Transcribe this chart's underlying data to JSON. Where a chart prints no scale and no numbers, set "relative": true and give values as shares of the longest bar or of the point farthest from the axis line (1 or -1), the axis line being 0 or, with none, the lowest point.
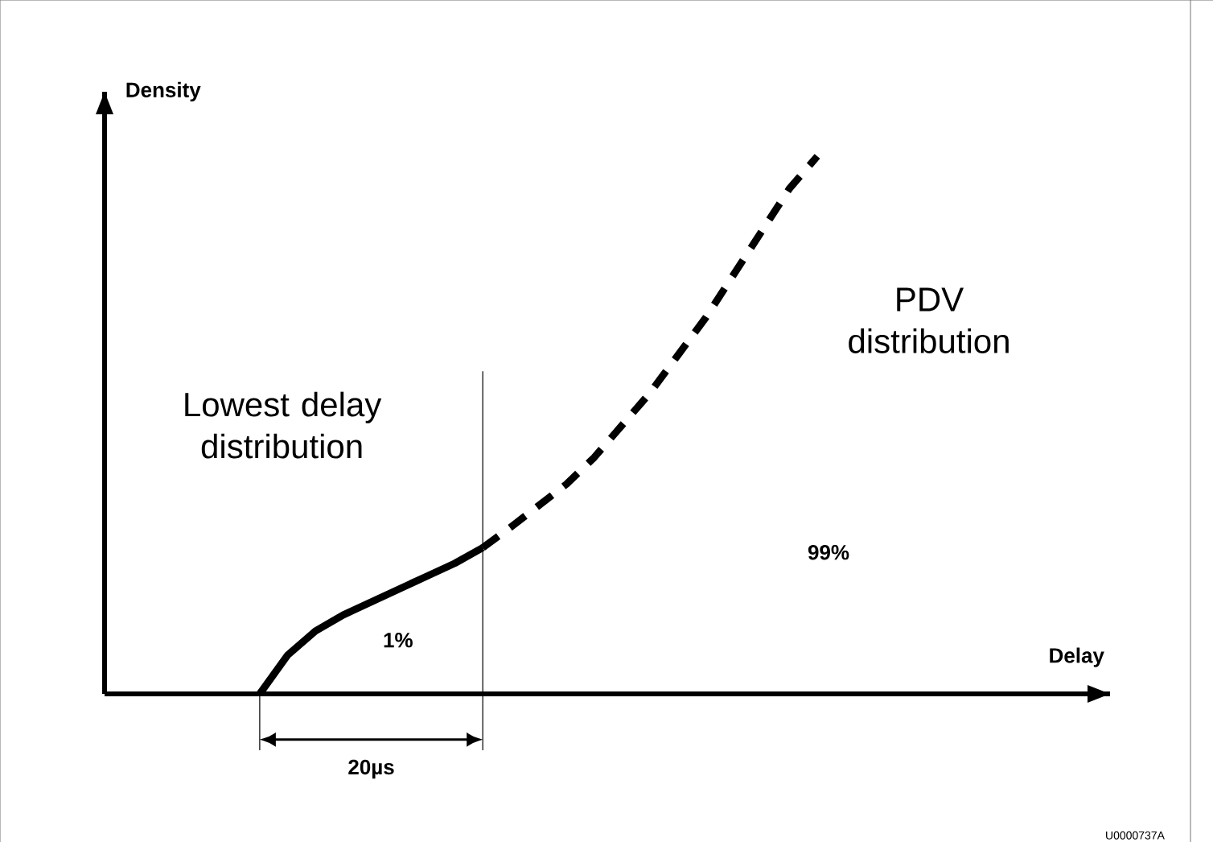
{
  "chart_data": {
    "type": "line",
    "relative": true,
    "ylabel": "Density",
    "categories": [
      null,
      null,
      null,
      null,
      null,
      null,
      null,
      null,
      null,
      null,
      null,
      null,
      null,
      null,
      null,
      null,
      null,
      null,
      null,
      null,
      null
    ],
    "series": [
      {
        "color": "#000000",
        "line_style": "solid",
        "values": [
          0,
          0.072,
          0.117,
          0.147,
          0.171,
          0.195,
          0.219,
          0.243,
          0.272,
          null,
          null,
          null,
          null,
          null,
          null,
          null,
          null,
          null,
          null,
          null,
          null
        ]
      },
      {
        "color": "#000000",
        "line_style": "dashed",
        "values": [
          null,
          null,
          null,
          null,
          null,
          null,
          null,
          null,
          0.272,
          0.31,
          0.35,
          0.39,
          0.44,
          0.5,
          0.56,
          0.63,
          0.7,
          0.78,
          0.86,
          0.94,
          1.0
        ]
      }
    ],
    "annotations": [
      "1%",
      "99%",
      "Lowest delay distribution",
      "PDV distribution",
      "20µs",
      "U0000737A",
      "Delay"
    ]
  }
}
